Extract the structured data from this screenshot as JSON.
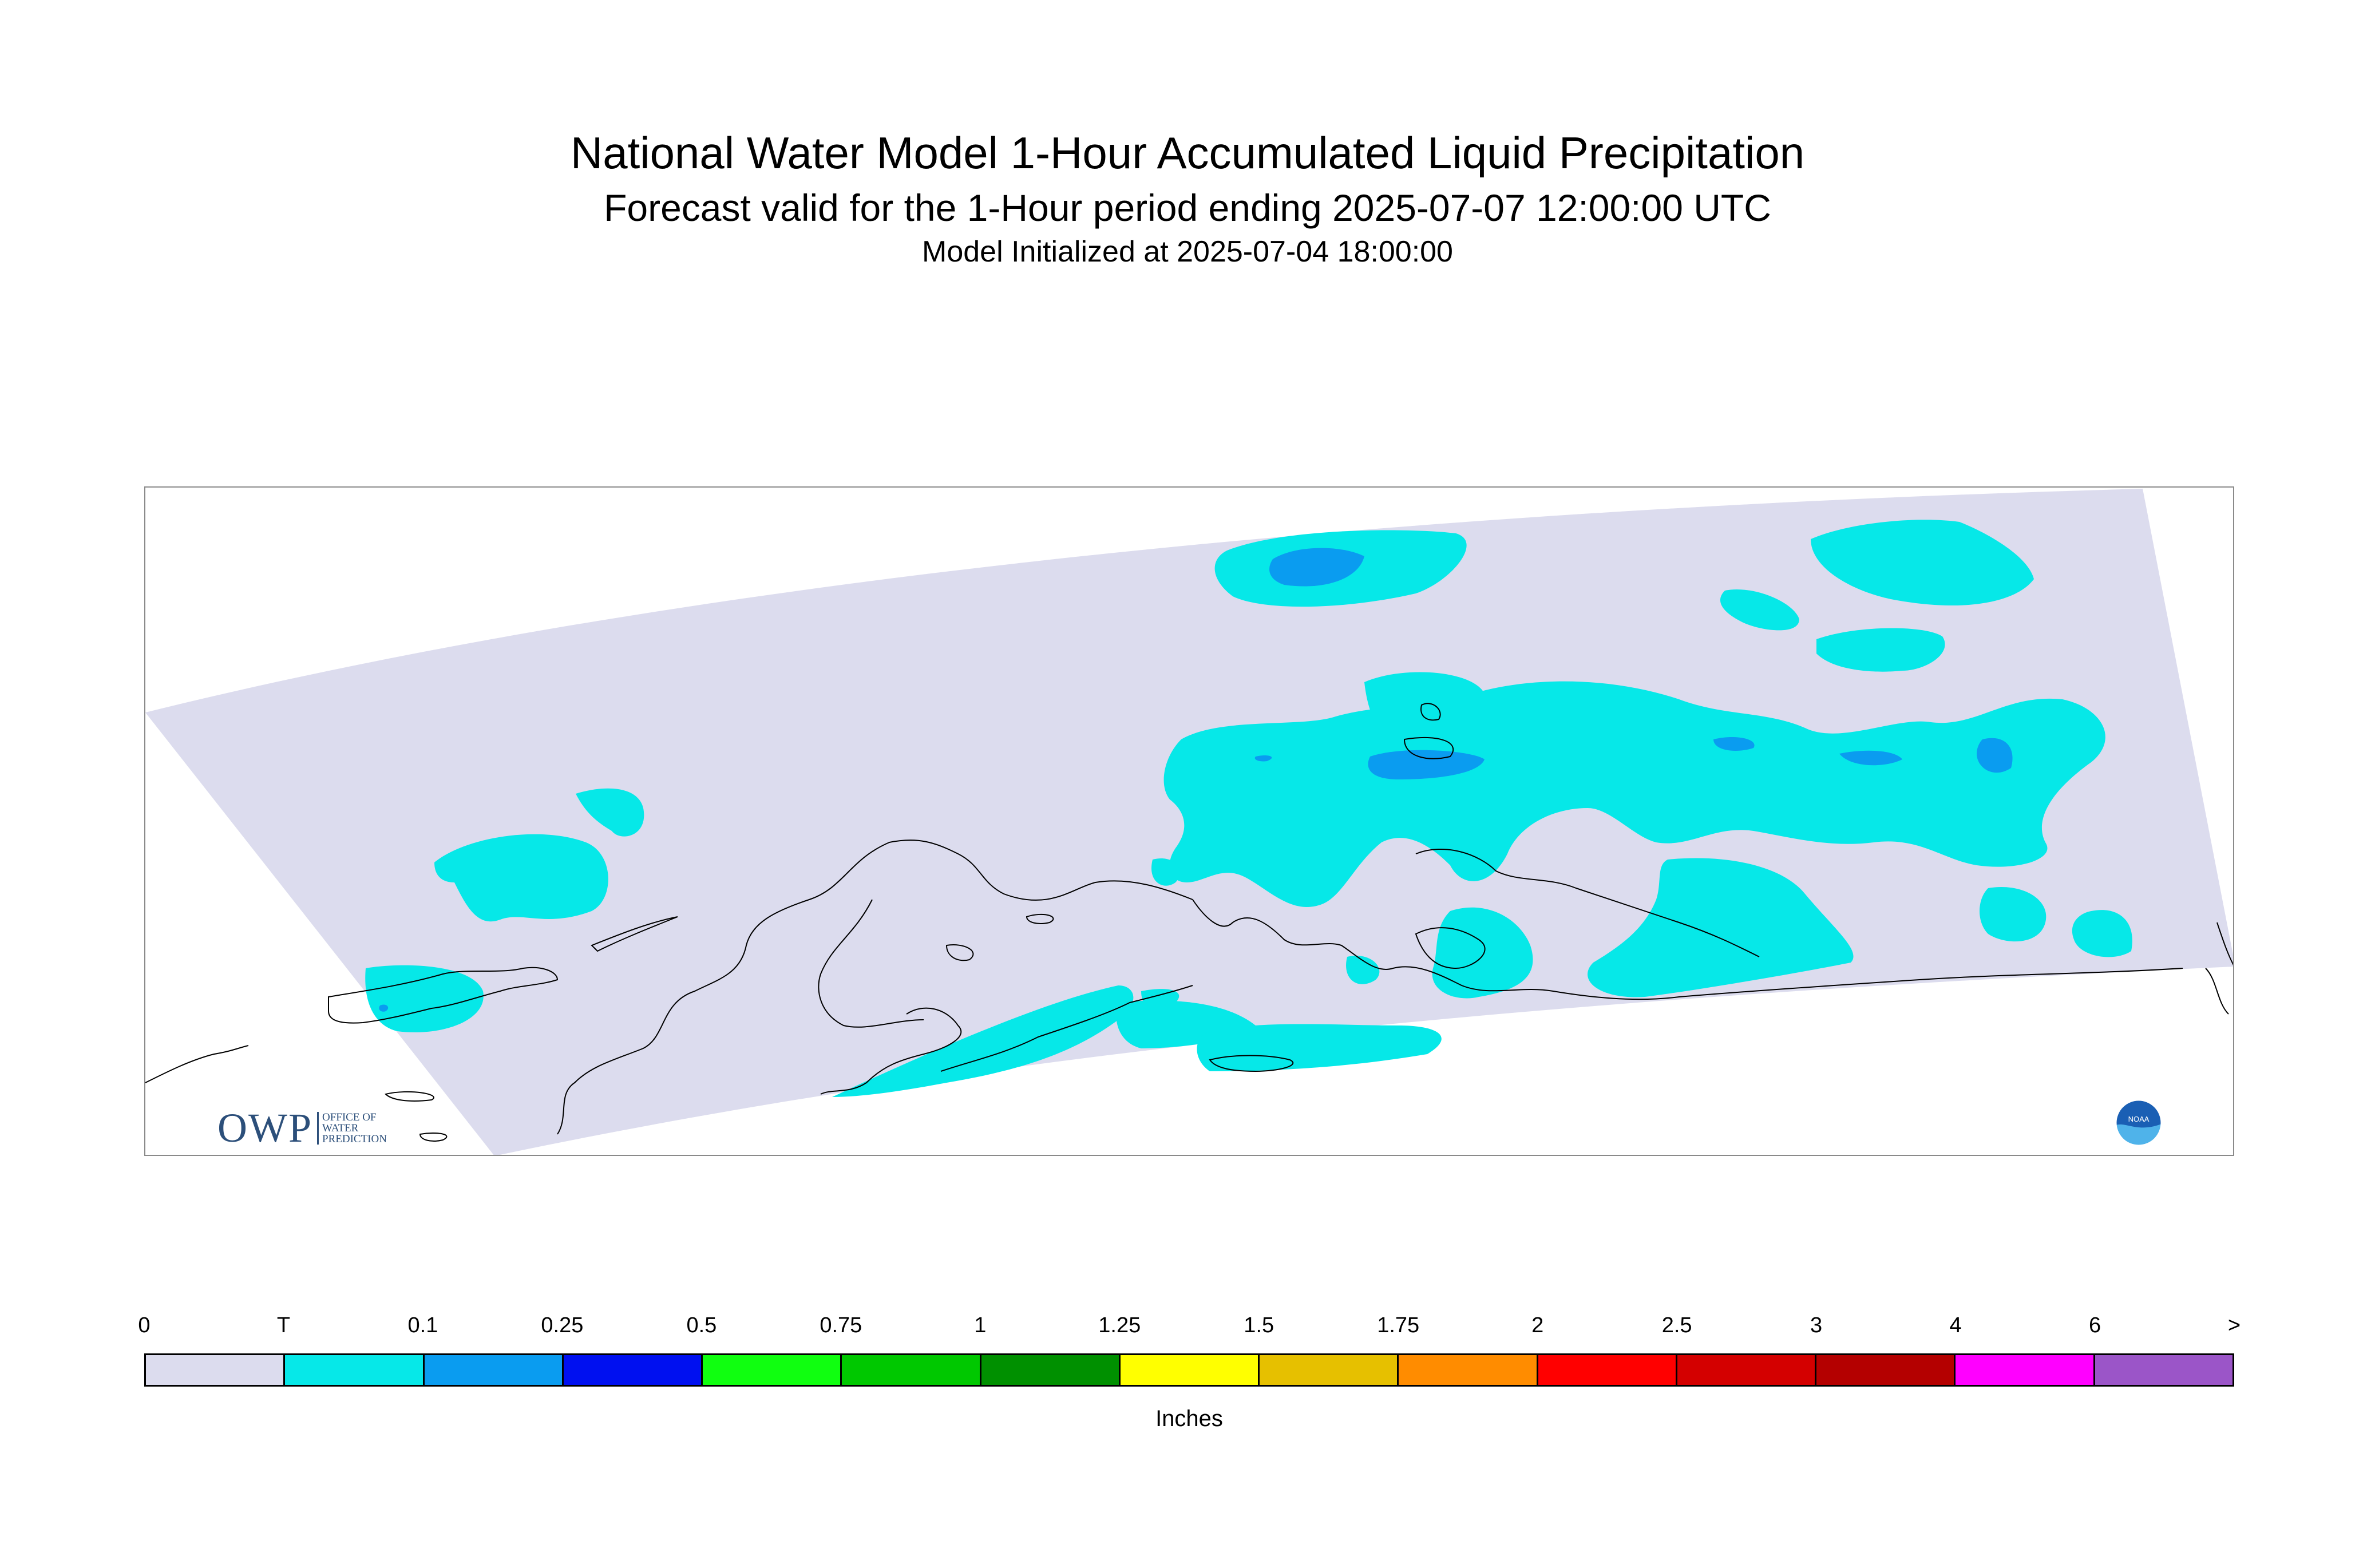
{
  "title": {
    "main": "National Water Model 1-Hour Accumulated Liquid Precipitation",
    "forecast": "Forecast valid for the 1-Hour period ending 2025-07-07 12:00:00 UTC",
    "init": "Model Initialized at 2025-07-04 18:00:00"
  },
  "logos": {
    "owp_letters": "OWP",
    "owp_text_lines": [
      "OFFICE OF",
      "WATER",
      "PREDICTION"
    ],
    "noaa": "NOAA"
  },
  "legend": {
    "ticks": [
      "0",
      "T",
      "0.1",
      "0.25",
      "0.5",
      "0.75",
      "1",
      "1.25",
      "1.5",
      "1.75",
      "2",
      "2.5",
      "3",
      "4",
      "6",
      ">"
    ],
    "colors": [
      "#dcdcee",
      "#06e8e8",
      "#0a9cf0",
      "#0010f0",
      "#10ff10",
      "#00c800",
      "#009000",
      "#ffff00",
      "#e6c000",
      "#ff8c00",
      "#ff0000",
      "#d40000",
      "#b40000",
      "#ff00ff",
      "#9b55c8"
    ],
    "units": "Inches"
  },
  "map_colors": {
    "domain": "#dcdcee",
    "trace": "#06e8e8",
    "light": "#0a9cf0",
    "coast": "#000000"
  }
}
